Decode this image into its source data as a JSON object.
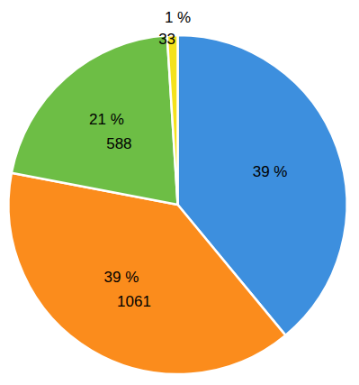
{
  "chart_data": {
    "type": "pie",
    "values": [
      39,
      39,
      21,
      1
    ],
    "value_labels": [
      "39 %",
      "39 %",
      "21 %",
      "1 %"
    ],
    "counts": [
      null,
      1061,
      588,
      33
    ],
    "colors": [
      "#3d8fde",
      "#fb8c1c",
      "#6dbe45",
      "#f4e21c"
    ],
    "data_labels": true
  }
}
